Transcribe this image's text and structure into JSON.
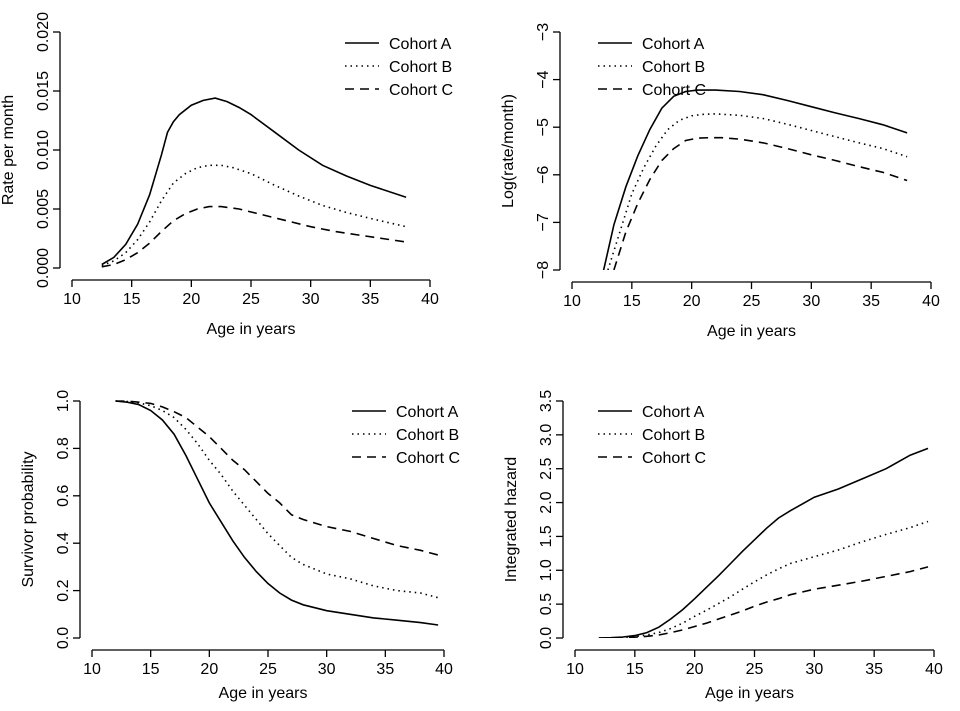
{
  "chart_data": [
    {
      "type": "line",
      "xlabel": "Age in years",
      "ylabel": "Rate per month",
      "xlim": [
        10,
        40
      ],
      "ylim": [
        0,
        0.02
      ],
      "xticks": [
        10,
        15,
        20,
        25,
        30,
        35,
        40
      ],
      "xtick_labels": [
        "10",
        "15",
        "20",
        "25",
        "30",
        "35",
        "40"
      ],
      "yticks": [
        0,
        0.005,
        0.01,
        0.015,
        0.02
      ],
      "ytick_labels": [
        "0.000",
        "0.005",
        "0.010",
        "0.015",
        "0.020"
      ],
      "legend_position": "top-right",
      "series": [
        {
          "name": "Cohort A",
          "style": "solid",
          "x": [
            12.5,
            13.5,
            14.5,
            15.5,
            16.5,
            17.5,
            18,
            18.5,
            19,
            20,
            21,
            22,
            23,
            24,
            25,
            27,
            29,
            31,
            33,
            35,
            38
          ],
          "y": [
            0.0003,
            0.0009,
            0.002,
            0.0037,
            0.0062,
            0.0096,
            0.0115,
            0.0124,
            0.013,
            0.0138,
            0.0142,
            0.0144,
            0.0141,
            0.0136,
            0.013,
            0.0115,
            0.01,
            0.0087,
            0.0078,
            0.007,
            0.006
          ]
        },
        {
          "name": "Cohort B",
          "style": "dotted",
          "x": [
            12.5,
            13.5,
            14.5,
            15.5,
            16.5,
            17.5,
            18.5,
            19.5,
            20.5,
            21.5,
            22.5,
            23.5,
            25,
            27,
            29,
            31,
            33,
            35,
            38
          ],
          "y": [
            0.0002,
            0.0006,
            0.0013,
            0.0024,
            0.0039,
            0.0057,
            0.0072,
            0.008,
            0.0085,
            0.0087,
            0.0087,
            0.0085,
            0.008,
            0.007,
            0.0061,
            0.0053,
            0.0047,
            0.0042,
            0.0035
          ]
        },
        {
          "name": "Cohort C",
          "style": "dashed",
          "x": [
            12.5,
            13.5,
            14.5,
            15.5,
            16.5,
            17.5,
            18.5,
            19.5,
            20.5,
            21.5,
            22.5,
            24,
            26,
            28,
            30,
            32,
            34,
            36,
            38
          ],
          "y": [
            0.0001,
            0.0003,
            0.0007,
            0.0013,
            0.0021,
            0.0031,
            0.004,
            0.0046,
            0.005,
            0.0052,
            0.0052,
            0.005,
            0.0045,
            0.004,
            0.0035,
            0.0031,
            0.0028,
            0.0025,
            0.0022
          ]
        }
      ]
    },
    {
      "type": "line",
      "xlabel": "Age in years",
      "ylabel": "Log(rate/month)",
      "xlim": [
        10,
        40
      ],
      "ylim": [
        -8,
        -3
      ],
      "xticks": [
        10,
        15,
        20,
        25,
        30,
        35,
        40
      ],
      "xtick_labels": [
        "10",
        "15",
        "20",
        "25",
        "30",
        "35",
        "40"
      ],
      "yticks": [
        -8,
        -7,
        -6,
        -5,
        -4,
        -3
      ],
      "ytick_labels": [
        "−8",
        "−7",
        "−6",
        "−5",
        "−4",
        "−3"
      ],
      "legend_position": "top-left",
      "series": [
        {
          "name": "Cohort A",
          "style": "solid",
          "x": [
            12.6,
            13.5,
            14.5,
            15.5,
            16.5,
            17.5,
            18.5,
            19.5,
            20.5,
            22,
            24,
            26,
            28,
            30,
            32,
            34,
            36,
            38
          ],
          "y": [
            -8.05,
            -7.05,
            -6.25,
            -5.6,
            -5.05,
            -4.6,
            -4.35,
            -4.25,
            -4.22,
            -4.22,
            -4.25,
            -4.32,
            -4.44,
            -4.57,
            -4.7,
            -4.82,
            -4.95,
            -5.12
          ]
        },
        {
          "name": "Cohort B",
          "style": "dotted",
          "x": [
            13.0,
            14,
            15,
            16,
            17,
            18,
            19,
            20,
            21,
            22,
            24,
            26,
            28,
            30,
            32,
            34,
            36,
            38
          ],
          "y": [
            -8.0,
            -7.2,
            -6.4,
            -5.85,
            -5.4,
            -5.05,
            -4.85,
            -4.76,
            -4.73,
            -4.72,
            -4.75,
            -4.82,
            -4.94,
            -5.07,
            -5.2,
            -5.33,
            -5.45,
            -5.62
          ]
        },
        {
          "name": "Cohort C",
          "style": "dashed",
          "x": [
            13.5,
            14.5,
            15.5,
            16.5,
            17.5,
            18.5,
            19.5,
            20.5,
            21.5,
            22.5,
            24,
            26,
            28,
            30,
            32,
            34,
            36,
            38
          ],
          "y": [
            -8.0,
            -7.2,
            -6.6,
            -6.1,
            -5.7,
            -5.45,
            -5.28,
            -5.23,
            -5.22,
            -5.22,
            -5.25,
            -5.33,
            -5.45,
            -5.58,
            -5.7,
            -5.83,
            -5.95,
            -6.12
          ]
        }
      ]
    },
    {
      "type": "line",
      "xlabel": "Age in years",
      "ylabel": "Survivor probability",
      "xlim": [
        10,
        40
      ],
      "ylim": [
        0,
        1
      ],
      "xticks": [
        10,
        15,
        20,
        25,
        30,
        35,
        40
      ],
      "xtick_labels": [
        "10",
        "15",
        "20",
        "25",
        "30",
        "35",
        "40"
      ],
      "yticks": [
        0,
        0.2,
        0.4,
        0.6,
        0.8,
        1.0
      ],
      "ytick_labels": [
        "0.0",
        "0.2",
        "0.4",
        "0.6",
        "0.8",
        "1.0"
      ],
      "legend_position": "top-right",
      "series": [
        {
          "name": "Cohort A",
          "style": "solid",
          "x": [
            12,
            13,
            14,
            15,
            16,
            17,
            18,
            19,
            20,
            21,
            22,
            23,
            24,
            25,
            26,
            27,
            28,
            30,
            32,
            34,
            36,
            38,
            39.5
          ],
          "y": [
            1.0,
            0.995,
            0.985,
            0.96,
            0.92,
            0.86,
            0.77,
            0.67,
            0.57,
            0.49,
            0.41,
            0.34,
            0.28,
            0.23,
            0.19,
            0.16,
            0.14,
            0.115,
            0.1,
            0.085,
            0.075,
            0.065,
            0.055
          ]
        },
        {
          "name": "Cohort B",
          "style": "dotted",
          "x": [
            12,
            13,
            14,
            15,
            16,
            17,
            18,
            19,
            20,
            21,
            22,
            23,
            24,
            25,
            26,
            27,
            28,
            30,
            32,
            34,
            36,
            38,
            39.5
          ],
          "y": [
            1.0,
            0.998,
            0.992,
            0.98,
            0.96,
            0.93,
            0.88,
            0.82,
            0.75,
            0.69,
            0.62,
            0.56,
            0.5,
            0.44,
            0.39,
            0.34,
            0.31,
            0.27,
            0.25,
            0.22,
            0.2,
            0.19,
            0.17
          ]
        },
        {
          "name": "Cohort C",
          "style": "dashed",
          "x": [
            12,
            13,
            14,
            15,
            16,
            17,
            18,
            19,
            20,
            21,
            22,
            23,
            24,
            25,
            26,
            27,
            28,
            30,
            32,
            34,
            36,
            38,
            39.5
          ],
          "y": [
            1.0,
            0.999,
            0.995,
            0.99,
            0.975,
            0.955,
            0.93,
            0.89,
            0.85,
            0.8,
            0.75,
            0.71,
            0.66,
            0.61,
            0.57,
            0.52,
            0.5,
            0.47,
            0.45,
            0.42,
            0.39,
            0.37,
            0.35
          ]
        }
      ]
    },
    {
      "type": "line",
      "xlabel": "Age in years",
      "ylabel": "Integrated hazard",
      "xlim": [
        10,
        40
      ],
      "ylim": [
        0,
        3.5
      ],
      "xticks": [
        10,
        15,
        20,
        25,
        30,
        35,
        40
      ],
      "xtick_labels": [
        "10",
        "15",
        "20",
        "25",
        "30",
        "35",
        "40"
      ],
      "yticks": [
        0,
        0.5,
        1.0,
        1.5,
        2.0,
        2.5,
        3.0,
        3.5
      ],
      "ytick_labels": [
        "0.0",
        "0.5",
        "1.0",
        "1.5",
        "2.0",
        "2.5",
        "3.0",
        "3.5"
      ],
      "legend_position": "top-left",
      "series": [
        {
          "name": "Cohort A",
          "style": "solid",
          "x": [
            12,
            13,
            14,
            15,
            16,
            17,
            18,
            19,
            20,
            21,
            22,
            23,
            24,
            25,
            26,
            27,
            28,
            29,
            30,
            32,
            34,
            36,
            38,
            39.5
          ],
          "y": [
            0,
            0.005,
            0.015,
            0.035,
            0.08,
            0.16,
            0.28,
            0.42,
            0.58,
            0.75,
            0.92,
            1.1,
            1.28,
            1.45,
            1.62,
            1.77,
            1.88,
            1.98,
            2.08,
            2.2,
            2.35,
            2.5,
            2.7,
            2.8
          ]
        },
        {
          "name": "Cohort B",
          "style": "dotted",
          "x": [
            12,
            13,
            14,
            15,
            16,
            17,
            18,
            19,
            20,
            21,
            22,
            23,
            24,
            25,
            26,
            27,
            28,
            30,
            32,
            34,
            36,
            38,
            39.5
          ],
          "y": [
            0,
            0.002,
            0.008,
            0.02,
            0.045,
            0.08,
            0.14,
            0.22,
            0.32,
            0.41,
            0.51,
            0.61,
            0.72,
            0.83,
            0.93,
            1.02,
            1.1,
            1.2,
            1.3,
            1.42,
            1.53,
            1.63,
            1.72
          ]
        },
        {
          "name": "Cohort C",
          "style": "dashed",
          "x": [
            12,
            13,
            14,
            15,
            16,
            17,
            18,
            19,
            20,
            21,
            22,
            23,
            24,
            25,
            26,
            27,
            28,
            30,
            32,
            34,
            36,
            38,
            39.5
          ],
          "y": [
            0,
            0.001,
            0.005,
            0.012,
            0.025,
            0.045,
            0.08,
            0.12,
            0.17,
            0.22,
            0.28,
            0.34,
            0.4,
            0.47,
            0.53,
            0.58,
            0.64,
            0.72,
            0.78,
            0.84,
            0.91,
            0.98,
            1.05
          ]
        }
      ]
    }
  ]
}
